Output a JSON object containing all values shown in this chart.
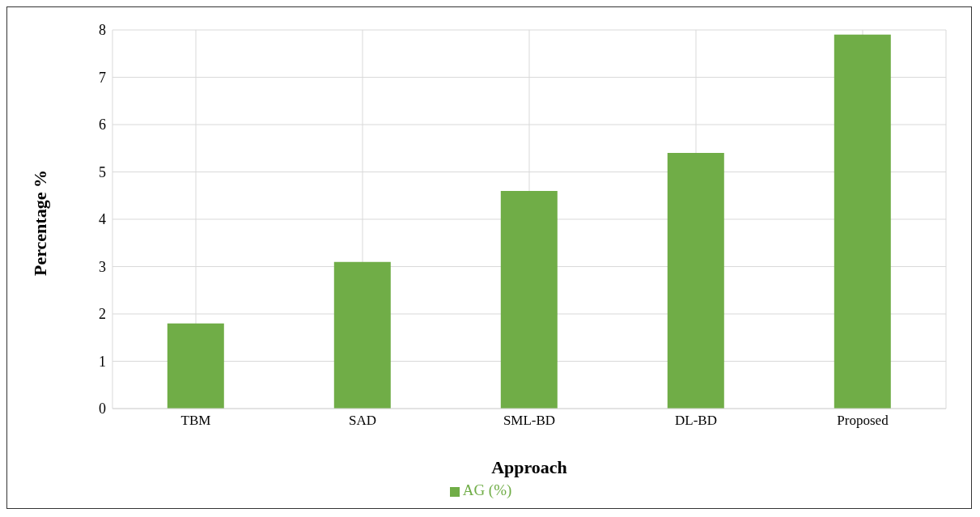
{
  "chart_data": {
    "type": "bar",
    "xlabel": "Approach",
    "ylabel": "Percentage %",
    "categories": [
      "TBM",
      "SAD",
      "SML-BD",
      "DL-BD",
      "Proposed"
    ],
    "series": [
      {
        "name": "AG (%)",
        "color": "#70ad47",
        "values": [
          1.8,
          3.1,
          4.6,
          5.4,
          7.9
        ]
      }
    ],
    "ylim": [
      0,
      8
    ],
    "yticks": [
      0,
      1,
      2,
      3,
      4,
      5,
      6,
      7,
      8
    ],
    "grid": true,
    "legend": "bottom"
  }
}
